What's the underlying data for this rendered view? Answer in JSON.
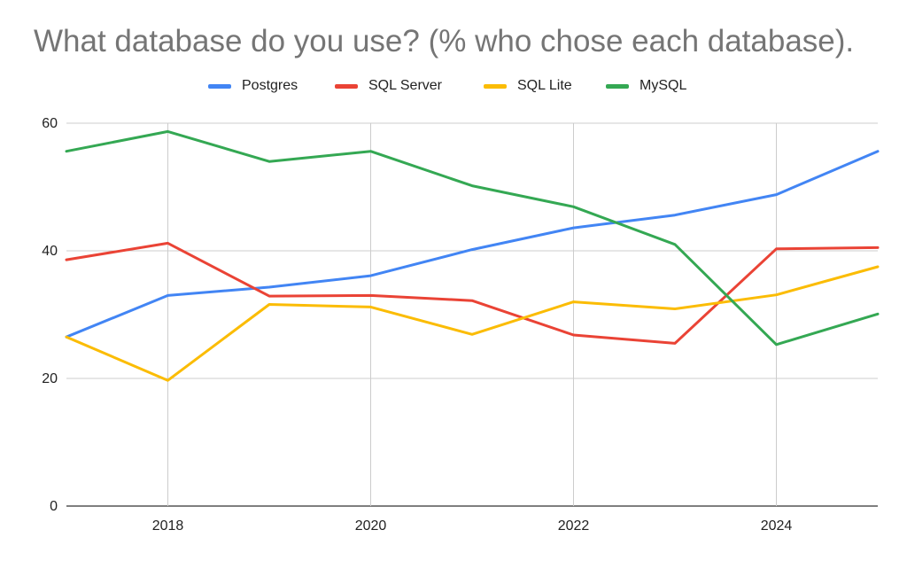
{
  "chart_data": {
    "type": "line",
    "title": "What database do you use? (% who chose each database).",
    "xlabel": "",
    "ylabel": "",
    "x": [
      2017,
      2018,
      2019,
      2020,
      2021,
      2022,
      2023,
      2024,
      2025
    ],
    "xlim": [
      2017,
      2025
    ],
    "ylim": [
      0,
      60
    ],
    "x_ticks": [
      "2018",
      "2020",
      "2022",
      "2024"
    ],
    "y_ticks": [
      "0",
      "20",
      "40",
      "60"
    ],
    "grid": true,
    "legend_position": "top-center",
    "series": [
      {
        "name": "Postgres",
        "color": "#4285f4",
        "values": [
          26.5,
          33.0,
          34.3,
          36.1,
          40.2,
          43.6,
          45.6,
          48.8,
          55.6
        ]
      },
      {
        "name": "SQL Server",
        "color": "#ea4335",
        "values": [
          38.6,
          41.2,
          32.9,
          33.0,
          32.2,
          26.8,
          25.5,
          40.3,
          40.5
        ]
      },
      {
        "name": "SQL Lite",
        "color": "#fbbc04",
        "values": [
          26.5,
          19.7,
          31.6,
          31.2,
          26.9,
          32.0,
          30.9,
          33.1,
          37.5
        ]
      },
      {
        "name": "MySQL",
        "color": "#34a853",
        "values": [
          55.6,
          58.7,
          54.0,
          55.6,
          50.2,
          46.9,
          41.0,
          25.3,
          30.1
        ]
      }
    ]
  }
}
